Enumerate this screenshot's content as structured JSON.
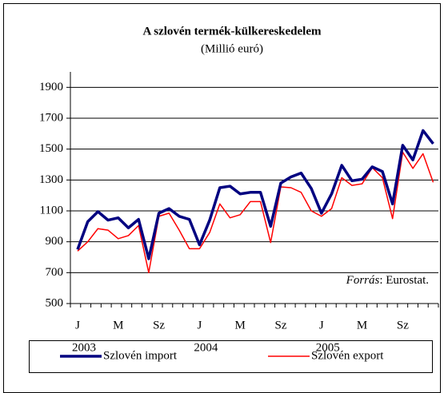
{
  "chart_data": {
    "type": "line",
    "title": "A szlovén termék-külkereskedelem",
    "subtitle": "(Millió euró)",
    "categories": [
      "J",
      null,
      null,
      null,
      "M",
      null,
      null,
      null,
      "Sz",
      null,
      null,
      null,
      "J",
      null,
      null,
      null,
      "M",
      null,
      null,
      null,
      "Sz",
      null,
      null,
      null,
      "J",
      null,
      null,
      null,
      "M",
      null,
      null,
      null,
      "Sz",
      null,
      null,
      null
    ],
    "years": [
      "2003",
      "2004",
      "2005"
    ],
    "series": [
      {
        "name": "Szlovén import",
        "color": "#000080",
        "width": 3.5,
        "values": [
          850,
          1030,
          1095,
          1040,
          1055,
          990,
          1045,
          790,
          1085,
          1115,
          1065,
          1045,
          880,
          1040,
          1250,
          1260,
          1210,
          1220,
          1220,
          1000,
          1280,
          1320,
          1345,
          1245,
          1085,
          1210,
          1395,
          1295,
          1305,
          1385,
          1355,
          1145,
          1525,
          1430,
          1620,
          1535
        ]
      },
      {
        "name": "Szlovén export",
        "color": "#ff0000",
        "width": 1.5,
        "values": [
          840,
          900,
          985,
          975,
          920,
          940,
          1005,
          700,
          1065,
          1085,
          975,
          855,
          855,
          960,
          1145,
          1055,
          1075,
          1160,
          1160,
          895,
          1255,
          1250,
          1220,
          1100,
          1065,
          1115,
          1315,
          1265,
          1275,
          1380,
          1315,
          1050,
          1480,
          1375,
          1470,
          1285
        ]
      }
    ],
    "ylim": [
      500,
      2000
    ],
    "yticks": [
      500,
      700,
      900,
      1100,
      1300,
      1500,
      1700,
      1900
    ],
    "grid": true,
    "source_label": "Forrás",
    "source_text": ": Eurostat.",
    "legend": "bottom"
  }
}
